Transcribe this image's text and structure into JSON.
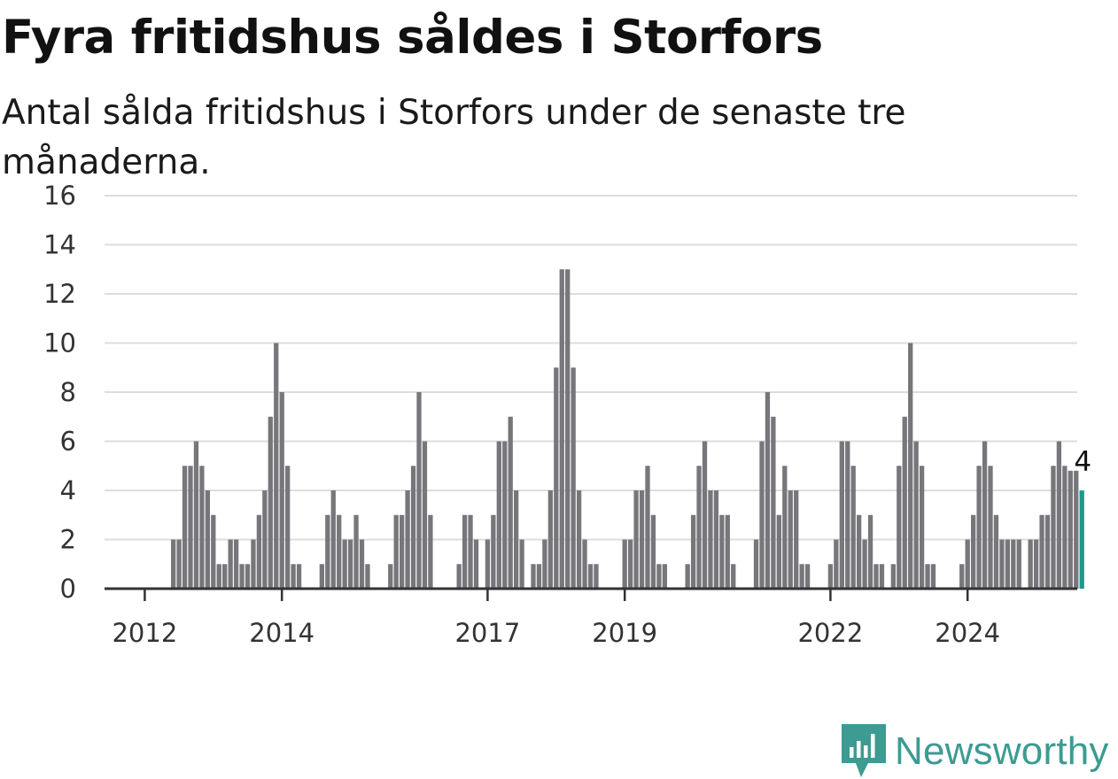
{
  "title": "Fyra fritidshus såldes i Storfors",
  "subtitle": "Antal sålda fritidshus i Storfors under de senaste tre månaderna.",
  "brand": "Newsworthy",
  "colors": {
    "bar": "#77767b",
    "highlight": "#1a9a8a",
    "grid": "#dddddd",
    "axis": "#333333",
    "brand": "#3d9b91"
  },
  "chart_data": {
    "type": "bar",
    "title": "Fyra fritidshus såldes i Storfors",
    "subtitle": "Antal sålda fritidshus i Storfors under de senaste tre månaderna.",
    "xlabel": "",
    "ylabel": "",
    "ylim": [
      0,
      16
    ],
    "yticks": [
      0,
      2,
      4,
      6,
      8,
      10,
      12,
      14,
      16
    ],
    "xticks": [
      {
        "label": "2012",
        "month": "2012-01"
      },
      {
        "label": "2014",
        "month": "2014-01"
      },
      {
        "label": "2017",
        "month": "2017-01"
      },
      {
        "label": "2019",
        "month": "2019-01"
      },
      {
        "label": "2022",
        "month": "2022-01"
      },
      {
        "label": "2024",
        "month": "2024-01"
      }
    ],
    "grid": true,
    "legend": "none",
    "start_month": "2011-08",
    "highlight_last": true,
    "last_value_label": "4",
    "values": [
      0,
      0,
      0,
      0,
      0,
      0,
      0,
      0,
      0,
      0,
      2,
      2,
      5,
      5,
      6,
      5,
      4,
      3,
      1,
      1,
      2,
      2,
      1,
      1,
      2,
      3,
      4,
      7,
      10,
      8,
      5,
      1,
      1,
      0,
      0,
      0,
      1,
      3,
      4,
      3,
      2,
      2,
      3,
      2,
      1,
      0,
      0,
      0,
      1,
      3,
      3,
      4,
      5,
      8,
      6,
      3,
      0,
      0,
      0,
      0,
      1,
      3,
      3,
      2,
      0,
      2,
      3,
      6,
      6,
      7,
      4,
      2,
      0,
      1,
      1,
      2,
      4,
      9,
      13,
      13,
      9,
      4,
      2,
      1,
      1,
      0,
      0,
      0,
      0,
      2,
      2,
      4,
      4,
      5,
      3,
      1,
      1,
      0,
      0,
      0,
      1,
      3,
      5,
      6,
      4,
      4,
      3,
      3,
      1,
      0,
      0,
      0,
      2,
      6,
      8,
      7,
      3,
      5,
      4,
      4,
      1,
      1,
      0,
      0,
      0,
      1,
      2,
      6,
      6,
      5,
      3,
      2,
      3,
      1,
      1,
      0,
      1,
      5,
      7,
      10,
      6,
      5,
      1,
      1,
      0,
      0,
      0,
      0,
      1,
      2,
      3,
      5,
      6,
      5,
      3,
      2,
      2,
      2,
      2,
      0,
      2,
      2,
      3,
      3,
      5,
      6,
      5,
      4.8,
      4.8,
      4
    ]
  }
}
